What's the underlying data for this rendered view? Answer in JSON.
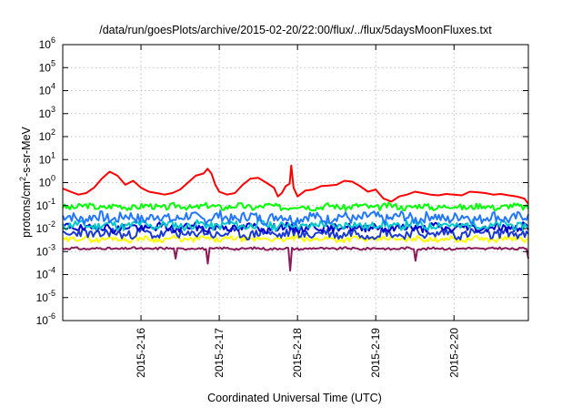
{
  "chart_data": {
    "type": "line",
    "title": "/data/run/goesPlots/archive/2015-02-20/22:00/flux/../flux/5daysMoonFluxes.txt",
    "xlabel": "Coordinated Universal Time (UTC)",
    "ylabel_main": "protons/cm",
    "ylabel_sup": "2",
    "ylabel_rest": "-s-sr-MeV",
    "yscale": "log",
    "ylim": [
      1e-06,
      1000000.0
    ],
    "xlim": [
      15.0,
      20.95
    ],
    "grid": true,
    "yticks": [
      {
        "base": "10",
        "exp": "-6"
      },
      {
        "base": "10",
        "exp": "-5"
      },
      {
        "base": "10",
        "exp": "-4"
      },
      {
        "base": "10",
        "exp": "-3"
      },
      {
        "base": "10",
        "exp": "-2"
      },
      {
        "base": "10",
        "exp": "-1"
      },
      {
        "base": "10",
        "exp": "0"
      },
      {
        "base": "10",
        "exp": "1"
      },
      {
        "base": "10",
        "exp": "2"
      },
      {
        "base": "10",
        "exp": "3"
      },
      {
        "base": "10",
        "exp": "4"
      },
      {
        "base": "10",
        "exp": "5"
      },
      {
        "base": "10",
        "exp": "6"
      }
    ],
    "xticks": [
      {
        "label": "2015-2-16",
        "value": 16
      },
      {
        "label": "2015-2-17",
        "value": 17
      },
      {
        "label": "2015-2-18",
        "value": 18
      },
      {
        "label": "2015-2-19",
        "value": 19
      },
      {
        "label": "2015-2-20",
        "value": 20
      }
    ],
    "series": [
      {
        "color": "#ff0000",
        "points": [
          [
            15.0,
            0.55
          ],
          [
            15.1,
            0.4
          ],
          [
            15.2,
            0.3
          ],
          [
            15.3,
            0.35
          ],
          [
            15.4,
            0.6
          ],
          [
            15.5,
            1.5
          ],
          [
            15.6,
            3.0
          ],
          [
            15.7,
            2.0
          ],
          [
            15.8,
            0.8
          ],
          [
            15.9,
            1.2
          ],
          [
            16.0,
            0.6
          ],
          [
            16.1,
            0.4
          ],
          [
            16.2,
            0.35
          ],
          [
            16.3,
            0.3
          ],
          [
            16.4,
            0.35
          ],
          [
            16.5,
            0.5
          ],
          [
            16.6,
            1.0
          ],
          [
            16.7,
            2.0
          ],
          [
            16.8,
            2.5
          ],
          [
            16.85,
            4.0
          ],
          [
            16.9,
            2.5
          ],
          [
            16.95,
            0.8
          ],
          [
            17.0,
            0.4
          ],
          [
            17.1,
            0.3
          ],
          [
            17.2,
            0.35
          ],
          [
            17.3,
            0.8
          ],
          [
            17.4,
            1.5
          ],
          [
            17.5,
            1.6
          ],
          [
            17.6,
            1.0
          ],
          [
            17.7,
            0.6
          ],
          [
            17.75,
            0.25
          ],
          [
            17.8,
            0.35
          ],
          [
            17.85,
            0.7
          ],
          [
            17.9,
            0.9
          ],
          [
            17.92,
            5.5
          ],
          [
            17.95,
            0.6
          ],
          [
            18.0,
            0.25
          ],
          [
            18.1,
            0.45
          ],
          [
            18.2,
            0.5
          ],
          [
            18.3,
            0.7
          ],
          [
            18.4,
            0.75
          ],
          [
            18.5,
            0.8
          ],
          [
            18.6,
            1.2
          ],
          [
            18.7,
            1.1
          ],
          [
            18.8,
            0.7
          ],
          [
            18.9,
            0.4
          ],
          [
            19.0,
            0.5
          ],
          [
            19.1,
            0.2
          ],
          [
            19.2,
            0.15
          ],
          [
            19.3,
            0.25
          ],
          [
            19.4,
            0.3
          ],
          [
            19.5,
            0.4
          ],
          [
            19.6,
            0.35
          ],
          [
            19.7,
            0.3
          ],
          [
            19.8,
            0.28
          ],
          [
            19.9,
            0.32
          ],
          [
            20.0,
            0.3
          ],
          [
            20.1,
            0.28
          ],
          [
            20.2,
            0.4
          ],
          [
            20.3,
            0.38
          ],
          [
            20.4,
            0.35
          ],
          [
            20.5,
            0.3
          ],
          [
            20.6,
            0.32
          ],
          [
            20.7,
            0.28
          ],
          [
            20.8,
            0.25
          ],
          [
            20.9,
            0.2
          ],
          [
            20.95,
            0.12
          ]
        ]
      },
      {
        "color": "#00ff00",
        "base": 0.09,
        "amp": 1.35,
        "seed": 3
      },
      {
        "color": "#2277ff",
        "base": 0.03,
        "amp": 1.7,
        "seed": 7
      },
      {
        "color": "#00c8c8",
        "base": 0.014,
        "amp": 1.5,
        "seed": 11
      },
      {
        "color": "#0000cc",
        "base": 0.011,
        "amp": 1.5,
        "seed": 19
      },
      {
        "color": "#1a3ad0",
        "base": 0.006,
        "amp": 1.6,
        "seed": 23
      },
      {
        "color": "#ffff00",
        "base": 0.0035,
        "amp": 1.3,
        "seed": 29
      },
      {
        "color": "#8b1a5a",
        "base": 0.00135,
        "amp": 1.12,
        "seed": 31,
        "dips": [
          [
            16.45,
            0.0005
          ],
          [
            16.85,
            0.0003
          ],
          [
            17.9,
            0.00015
          ],
          [
            19.5,
            0.0004
          ],
          [
            20.95,
            0.0005
          ]
        ]
      }
    ]
  }
}
